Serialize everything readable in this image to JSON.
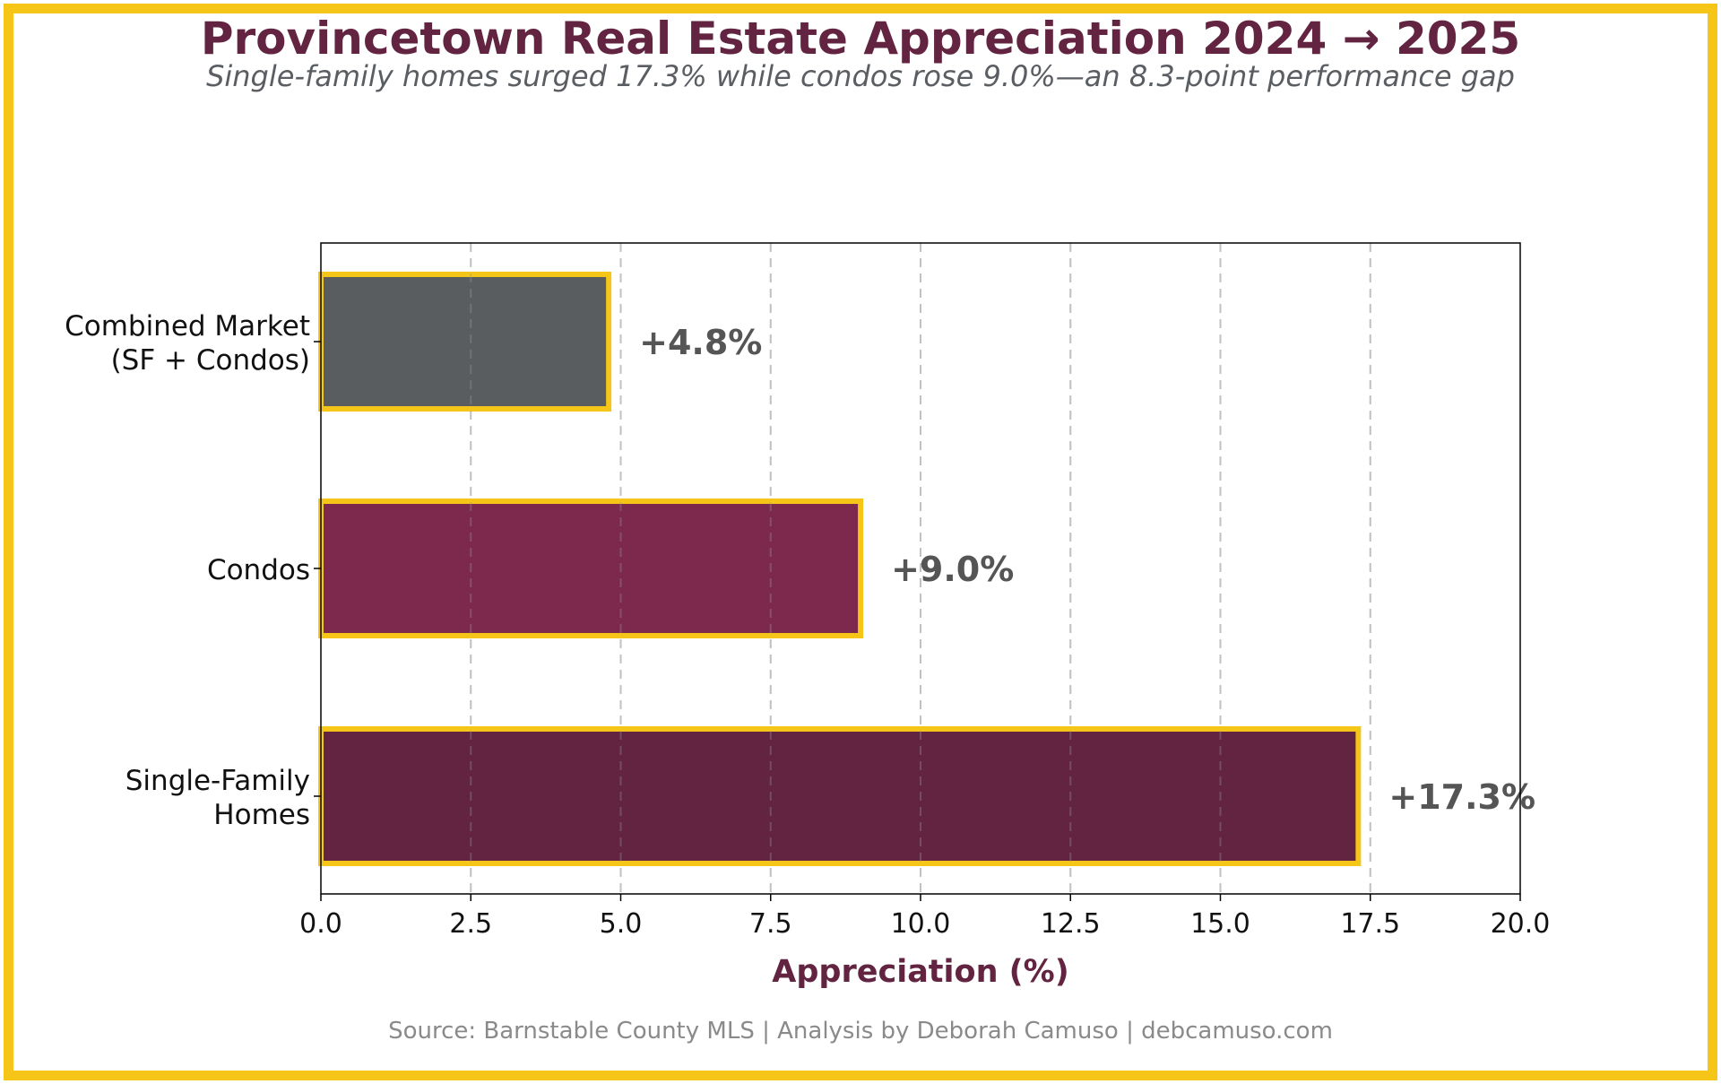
{
  "chart_data": {
    "type": "bar",
    "orientation": "horizontal",
    "title": "Provincetown Real Estate Appreciation 2024 → 2025",
    "subtitle": "Single-family homes surged 17.3% while condos rose 9.0%—an 8.3-point performance gap",
    "xlabel": "Appreciation (%)",
    "ylabel": "",
    "xlim": [
      0,
      20
    ],
    "xticks": [
      "0.0",
      "2.5",
      "5.0",
      "7.5",
      "10.0",
      "12.5",
      "15.0",
      "17.5",
      "20.0"
    ],
    "grid": "vertical dashed",
    "categories": [
      [
        "Combined Market",
        "(SF + Condos)"
      ],
      [
        "Condos"
      ],
      [
        "Single-Family",
        "Homes"
      ]
    ],
    "values": [
      4.8,
      9.0,
      17.3
    ],
    "data_labels": [
      "+4.8%",
      "+9.0%",
      "+17.3%"
    ],
    "bar_colors": [
      "#5a5d60",
      "#7d284d",
      "#622440"
    ],
    "bar_edge_color": "#f5c518",
    "label_color": "#555555"
  },
  "footer": {
    "source": "Source: Barnstable County MLS | Analysis by Deborah Camuso | debcamuso.com"
  },
  "colors": {
    "frame": "#f5c518",
    "title": "#622440",
    "subtitle": "#5a5e62",
    "source": "#8a8a8a"
  }
}
